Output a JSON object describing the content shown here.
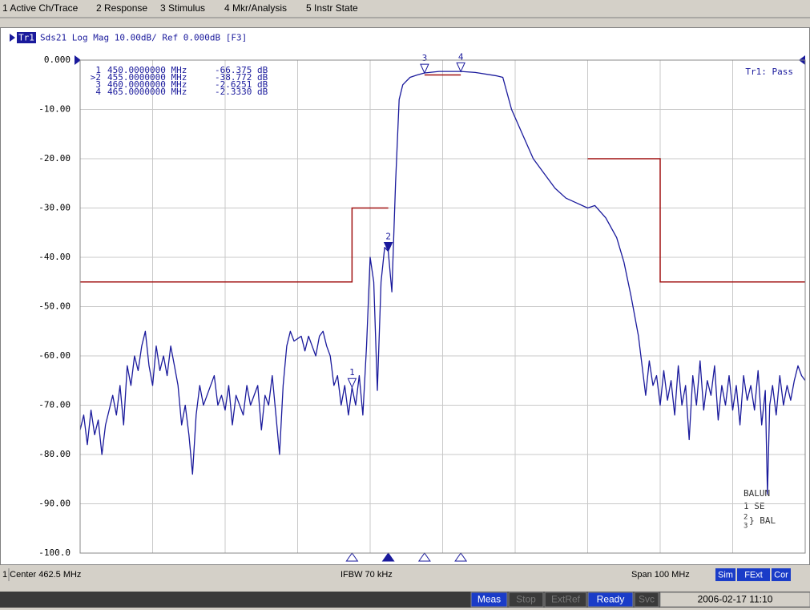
{
  "menu": [
    "1 Active Ch/Trace",
    "2 Response",
    "3 Stimulus",
    "4 Mkr/Analysis",
    "5 Instr State"
  ],
  "chart_data": {
    "type": "line",
    "trace_name": "Tr1",
    "header": "Sds21 Log Mag 10.00dB/ Ref 0.000dB [F3]",
    "status": "Tr1: Pass",
    "xlim": [
      412.5,
      512.5
    ],
    "xticks": [
      412.5,
      422.5,
      432.5,
      442.5,
      452.5,
      462.5,
      472.5,
      482.5,
      492.5,
      502.5,
      512.5
    ],
    "ylim": [
      -100,
      0
    ],
    "yticks": [
      {
        "value": 0,
        "label": "0.000"
      },
      {
        "value": -10,
        "label": "-10.00"
      },
      {
        "value": -20,
        "label": "-20.00"
      },
      {
        "value": -30,
        "label": "-30.00"
      },
      {
        "value": -40,
        "label": "-40.00"
      },
      {
        "value": -50,
        "label": "-50.00"
      },
      {
        "value": -60,
        "label": "-60.00"
      },
      {
        "value": -70,
        "label": "-70.00"
      },
      {
        "value": -80,
        "label": "-80.00"
      },
      {
        "value": -90,
        "label": "-90.00"
      },
      {
        "value": -100,
        "label": "-100.0"
      }
    ],
    "grid": true,
    "trace": {
      "color": "#1a1a9c",
      "x": [
        412.5,
        413,
        413.5,
        414,
        414.5,
        415,
        415.5,
        416,
        417,
        417.5,
        418,
        418.5,
        419,
        419.5,
        420,
        420.5,
        421,
        421.5,
        422,
        422.5,
        423,
        423.5,
        424,
        424.5,
        425,
        425.5,
        426,
        426.5,
        427,
        427.5,
        428,
        428.5,
        429,
        429.5,
        430,
        431,
        431.5,
        432,
        432.5,
        433,
        433.5,
        434,
        435,
        435.5,
        436,
        437,
        437.5,
        438,
        438.5,
        439,
        439.5,
        440,
        440.5,
        441,
        441.5,
        442,
        443,
        443.5,
        444,
        444.5,
        445,
        445.5,
        446,
        446.5,
        447,
        447.5,
        448,
        448.5,
        449,
        449.5,
        450,
        450.5,
        451,
        451.5,
        452,
        452.5,
        453,
        453.5,
        454,
        454.5,
        455,
        455.5,
        456,
        456.5,
        457,
        458,
        459,
        460,
        462,
        465,
        467,
        470,
        470.8,
        472,
        473.5,
        475,
        476.5,
        478,
        479.5,
        481,
        482.5,
        483.5,
        485,
        486.5,
        487.5,
        488.5,
        489.5,
        490,
        490.5,
        491,
        491.5,
        492,
        492.5,
        493,
        493.5,
        494,
        494.5,
        495,
        495.5,
        496,
        496.5,
        497,
        497.5,
        498,
        498.5,
        499,
        499.5,
        500,
        500.5,
        501,
        501.5,
        502,
        502.5,
        503,
        503.5,
        504,
        504.5,
        505,
        505.5,
        506,
        506.5,
        507,
        507.3,
        507.6,
        508,
        508.5,
        509,
        509.5,
        510,
        510.5,
        511,
        511.5,
        512,
        512.5
      ],
      "values": [
        -75,
        -72,
        -78,
        -71,
        -76,
        -73,
        -80,
        -74,
        -68,
        -72,
        -66,
        -74,
        -62,
        -66,
        -60,
        -63,
        -58,
        -55,
        -62,
        -66,
        -58,
        -63,
        -60,
        -64,
        -58,
        -62,
        -66,
        -74,
        -70,
        -76,
        -84,
        -72,
        -66,
        -70,
        -68,
        -64,
        -70,
        -68,
        -71,
        -66,
        -74,
        -68,
        -72,
        -66,
        -70,
        -66,
        -75,
        -68,
        -70,
        -64,
        -72,
        -80,
        -66,
        -58,
        -55,
        -57,
        -56,
        -59,
        -56,
        -58,
        -60,
        -56,
        -55,
        -58,
        -60,
        -66,
        -64,
        -70,
        -66,
        -72,
        -66.4,
        -70,
        -64,
        -72,
        -58,
        -40,
        -45,
        -67,
        -45,
        -38,
        -38.8,
        -47,
        -25,
        -8,
        -5,
        -3.5,
        -3,
        -2.6,
        -2.3,
        -2.3,
        -2.5,
        -3.2,
        -3.5,
        -10,
        -15,
        -20,
        -23,
        -26,
        -28,
        -29,
        -30,
        -29.5,
        -32,
        -36,
        -41,
        -48,
        -56,
        -62,
        -68,
        -61,
        -66,
        -64,
        -70,
        -63,
        -69,
        -65,
        -72,
        -62,
        -70,
        -66,
        -77,
        -64,
        -70,
        -61,
        -71,
        -65,
        -68,
        -62,
        -73,
        -66,
        -70,
        -64,
        -71,
        -66,
        -74,
        -64,
        -69,
        -66,
        -71,
        -63,
        -74,
        -67,
        -88,
        -70,
        -66,
        -72,
        -64,
        -70,
        -66,
        -69,
        -65,
        -62,
        -64,
        -65
      ]
    },
    "limit_lines": {
      "color": "#a01010",
      "segments": [
        {
          "x": [
            412.5,
            450,
            450,
            455
          ],
          "values": [
            -45,
            -45,
            -30,
            -30
          ]
        },
        {
          "x": [
            460,
            465
          ],
          "values": [
            -3,
            -3
          ]
        },
        {
          "x": [
            482.5,
            492.5,
            492.5,
            512.5
          ],
          "values": [
            -20,
            -20,
            -45,
            -45
          ]
        }
      ]
    },
    "markers": [
      {
        "name": "1",
        "table_label": "1",
        "freq": 450,
        "freq_label": "450.0000000 MHz",
        "value": -66.375,
        "value_label": "-66.375 dB",
        "active": false
      },
      {
        "name": "2",
        "table_label": ">2",
        "freq": 455,
        "freq_label": "455.0000000 MHz",
        "value": -38.772,
        "value_label": "-38.772 dB",
        "active": true
      },
      {
        "name": "3",
        "table_label": "3",
        "freq": 460,
        "freq_label": "460.0000000 MHz",
        "value": -2.6251,
        "value_label": "-2.6251 dB",
        "active": false
      },
      {
        "name": "4",
        "table_label": "4",
        "freq": 465,
        "freq_label": "465.0000000 MHz",
        "value": -2.333,
        "value_label": "-2.3330 dB",
        "active": false
      }
    ],
    "balun": {
      "title": "BALUN",
      "port1": "1  SE",
      "port2": "2",
      "port3": "3",
      "bal": "} BAL"
    }
  },
  "status_bar": {
    "center": "1 Center 462.5 MHz",
    "ifbw": "IFBW 70 kHz",
    "span": "Span 100 MHz",
    "flags": [
      "Sim",
      "FExt",
      "Cor"
    ]
  },
  "bottom_bar": [
    "Meas",
    "Stop",
    "ExtRef",
    "Ready",
    "Svc",
    "2006-02-17 11:10"
  ]
}
